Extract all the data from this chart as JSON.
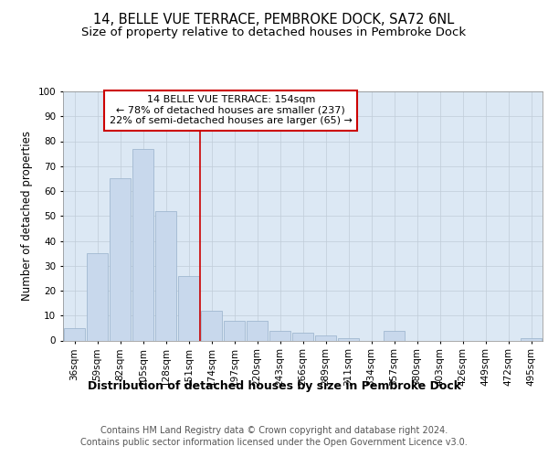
{
  "title1": "14, BELLE VUE TERRACE, PEMBROKE DOCK, SA72 6NL",
  "title2": "Size of property relative to detached houses in Pembroke Dock",
  "xlabel": "Distribution of detached houses by size in Pembroke Dock",
  "ylabel": "Number of detached properties",
  "categories": [
    "36sqm",
    "59sqm",
    "82sqm",
    "105sqm",
    "128sqm",
    "151sqm",
    "174sqm",
    "197sqm",
    "220sqm",
    "243sqm",
    "266sqm",
    "289sqm",
    "311sqm",
    "334sqm",
    "357sqm",
    "380sqm",
    "403sqm",
    "426sqm",
    "449sqm",
    "472sqm",
    "495sqm"
  ],
  "values": [
    5,
    35,
    65,
    77,
    52,
    26,
    12,
    8,
    8,
    4,
    3,
    2,
    1,
    0,
    4,
    0,
    0,
    0,
    0,
    0,
    1
  ],
  "bar_color": "#c8d8ec",
  "bar_edge_color": "#a0b8d0",
  "vline_x": 5.5,
  "vline_color": "#cc0000",
  "annotation_text": "14 BELLE VUE TERRACE: 154sqm\n← 78% of detached houses are smaller (237)\n22% of semi-detached houses are larger (65) →",
  "annotation_box_color": "#ffffff",
  "annotation_box_edge": "#cc0000",
  "ylim": [
    0,
    100
  ],
  "yticks": [
    0,
    10,
    20,
    30,
    40,
    50,
    60,
    70,
    80,
    90,
    100
  ],
  "grid_color": "#c0ccd8",
  "bg_color": "#ffffff",
  "plot_bg_color": "#dce8f4",
  "footer1": "Contains HM Land Registry data © Crown copyright and database right 2024.",
  "footer2": "Contains public sector information licensed under the Open Government Licence v3.0.",
  "title1_fontsize": 10.5,
  "title2_fontsize": 9.5,
  "xlabel_fontsize": 9,
  "ylabel_fontsize": 8.5,
  "tick_fontsize": 7.5,
  "annotation_fontsize": 8,
  "footer_fontsize": 7
}
